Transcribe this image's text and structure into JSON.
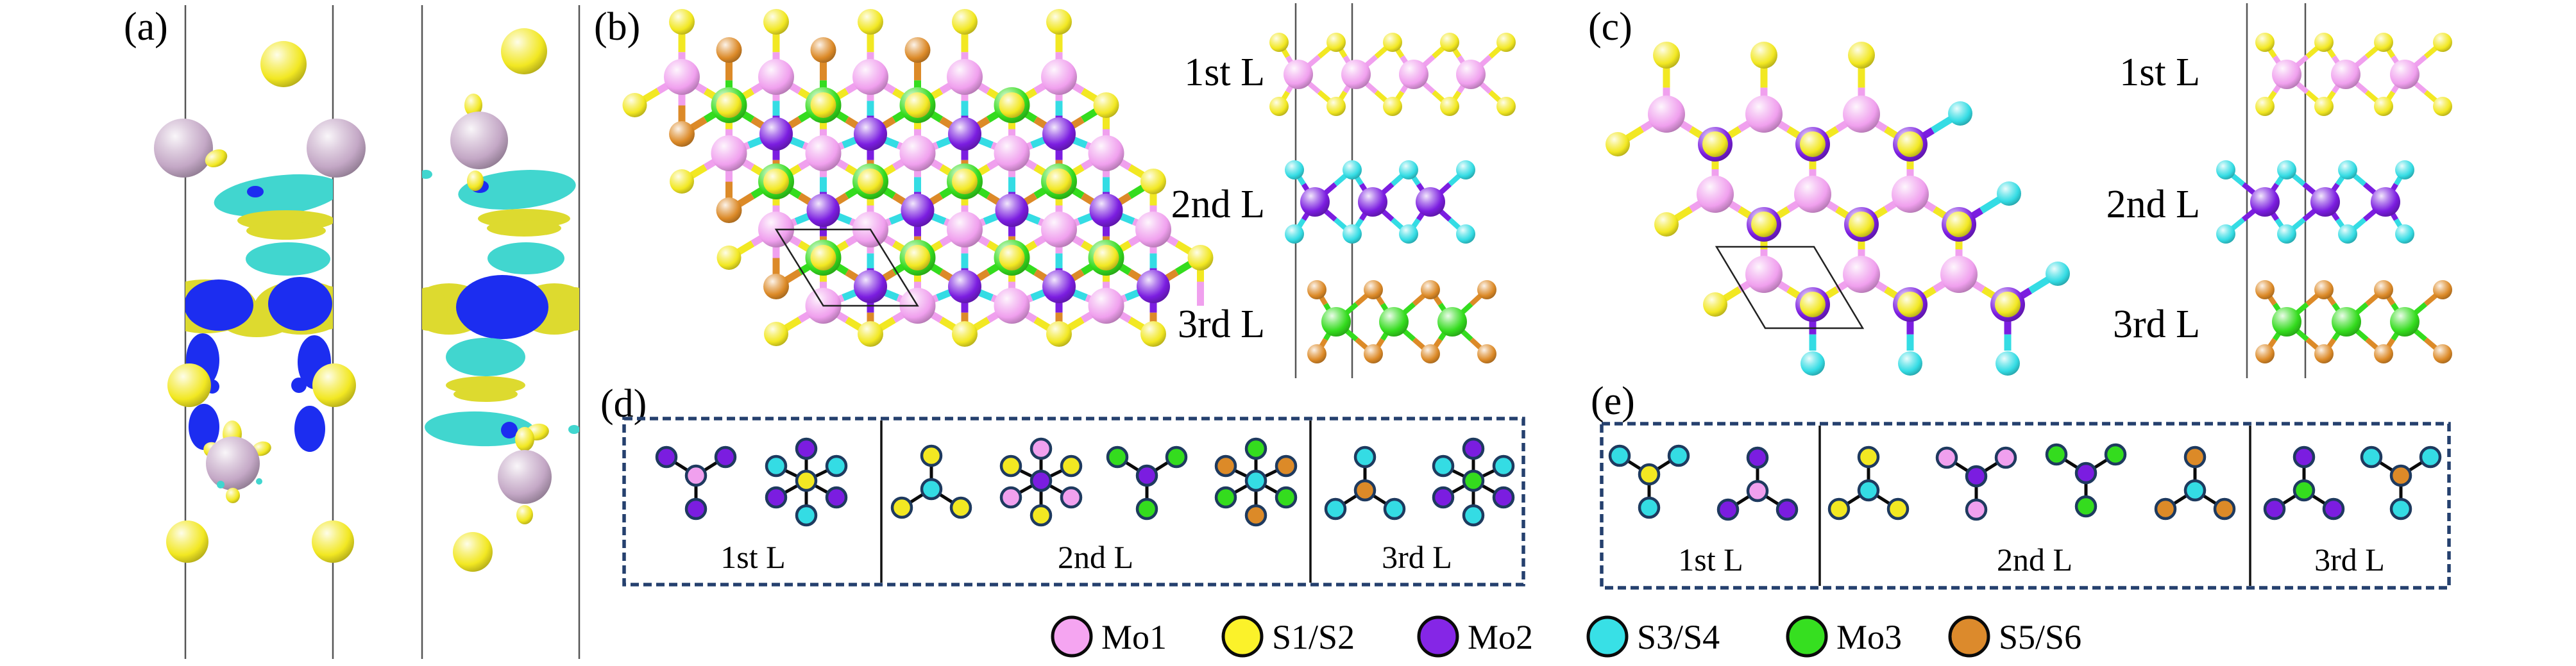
{
  "panels": {
    "a": {
      "label": "(a)"
    },
    "b": {
      "label": "(b)",
      "layer_labels": [
        "1st L",
        "2nd L",
        "3rd L"
      ]
    },
    "c": {
      "label": "(c)",
      "layer_labels": [
        "1st L",
        "2nd L",
        "3rd L"
      ]
    },
    "d": {
      "label": "(d)",
      "section_labels": [
        "1st L",
        "2nd L",
        "3rd L"
      ]
    },
    "e": {
      "label": "(e)",
      "section_labels": [
        "1st L",
        "2nd L",
        "3rd L"
      ]
    }
  },
  "legend": {
    "items": [
      {
        "label": "Mo1",
        "color": "#f5a5f1"
      },
      {
        "label": "S1/S2",
        "color": "#fbf22a"
      },
      {
        "label": "Mo2",
        "color": "#8526e6"
      },
      {
        "label": "S3/S4",
        "color": "#38e0e6"
      },
      {
        "label": "Mo3",
        "color": "#36df20"
      },
      {
        "label": "S5/S6",
        "color": "#dc8a2c"
      }
    ]
  },
  "palette": {
    "mo1": "#f0a0ee",
    "s12": "#f2e822",
    "mo2": "#7b1de0",
    "s34": "#34dce4",
    "mo3": "#34dc1e",
    "s56": "#dc8a28",
    "mo_side": "#c4a8c6",
    "iso_yellow": "#ddda2f",
    "iso_cyan": "#41d6cf",
    "iso_blue": "#1c2df0",
    "outline": "#1e3a5f",
    "box_border": "#25406e"
  },
  "motifs_d": [
    {
      "type": "y2up1down",
      "center": "mo1",
      "neighbors": [
        "mo2",
        "mo2",
        "mo2"
      ]
    },
    {
      "type": "star",
      "center": "s12",
      "neighbors": [
        "mo2",
        "s34",
        "s34",
        "mo2",
        "mo2",
        "s34"
      ]
    },
    {
      "type": "y1up2down",
      "center": "s34",
      "neighbors": [
        "s12",
        "s12",
        "s12"
      ]
    },
    {
      "type": "star",
      "center": "mo2",
      "neighbors": [
        "mo1",
        "s12",
        "s12",
        "mo1",
        "mo1",
        "s12"
      ]
    },
    {
      "type": "y2up1down",
      "center": "mo2",
      "neighbors": [
        "mo3",
        "mo3",
        "mo3"
      ]
    },
    {
      "type": "star",
      "center": "s34",
      "neighbors": [
        "mo3",
        "s56",
        "s56",
        "mo3",
        "mo3",
        "s56"
      ]
    },
    {
      "type": "y1up2down",
      "center": "s56",
      "neighbors": [
        "s34",
        "s34",
        "s34"
      ]
    },
    {
      "type": "star",
      "center": "mo3",
      "neighbors": [
        "mo2",
        "s34",
        "s34",
        "mo2",
        "mo2",
        "s34"
      ]
    }
  ],
  "motifs_e": [
    {
      "type": "y2up1down",
      "center": "s12",
      "neighbors": [
        "s34",
        "s34",
        "s34"
      ]
    },
    {
      "type": "y1up2down",
      "center": "mo1",
      "neighbors": [
        "mo2",
        "mo2",
        "mo2"
      ]
    },
    {
      "type": "y1up2down",
      "center": "s34",
      "neighbors": [
        "s12",
        "s12",
        "s12"
      ]
    },
    {
      "type": "y2up1down",
      "center": "mo2",
      "neighbors": [
        "mo1",
        "mo1",
        "mo1"
      ]
    },
    {
      "type": "y2up1down",
      "center": "mo2",
      "neighbors": [
        "mo3",
        "mo3",
        "mo3"
      ]
    },
    {
      "type": "y1up2down",
      "center": "s34",
      "neighbors": [
        "s56",
        "s56",
        "s56"
      ]
    },
    {
      "type": "y1up2down",
      "center": "mo3",
      "neighbors": [
        "mo2",
        "mo2",
        "mo2"
      ]
    },
    {
      "type": "y2up1down",
      "center": "s56",
      "neighbors": [
        "s34",
        "s34",
        "s34"
      ]
    }
  ]
}
